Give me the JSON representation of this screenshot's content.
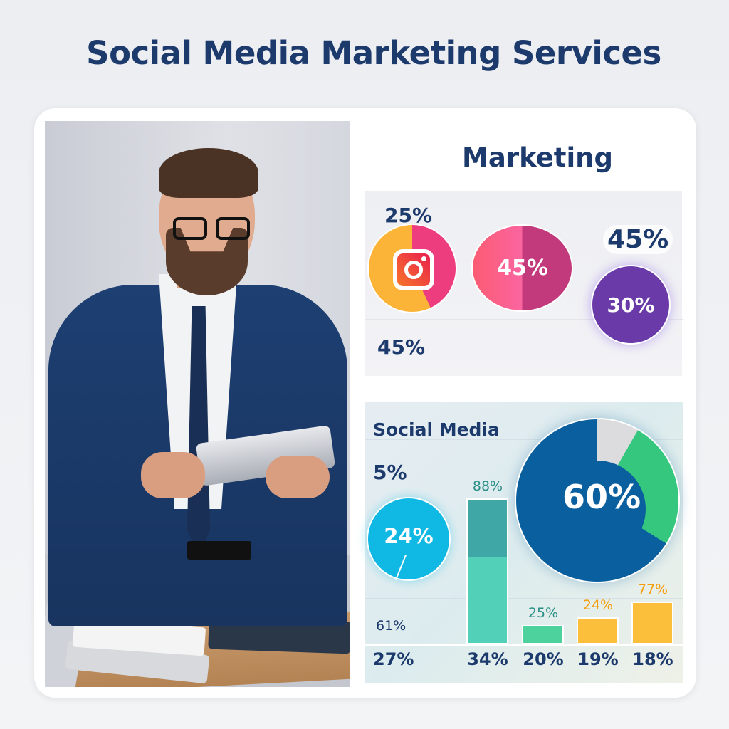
{
  "title": "Social Media Marketing Services",
  "marketing": {
    "title": "Marketing",
    "label_top_left": "25%",
    "label_bottom_left": "45%",
    "instagram_icon": "instagram-icon",
    "oval_value": "45%",
    "label_top_right": "45%",
    "purple_value": "30%",
    "colors": {
      "yellow": "#fbb437",
      "pink": "#ee3d7f",
      "oval_left": "#fb5c72",
      "oval_right": "#c23a7c",
      "purple": "#6a3aa8"
    }
  },
  "social_media": {
    "title": "Social Media",
    "label_5": "5%",
    "circle_value": "24%",
    "label_61": "61%",
    "pie_value": "60%",
    "bars": [
      {
        "top_label": "88%",
        "bottom_label": "34%",
        "value": 88,
        "color": "#52d0b8"
      },
      {
        "top_label": "25%",
        "bottom_label": "20%",
        "value": 25,
        "color": "#4ed29d"
      },
      {
        "top_label": "24%",
        "bottom_label": "19%",
        "value": 24,
        "color": "#fbbf3c"
      },
      {
        "top_label": "77%",
        "bottom_label": "18%",
        "value": 77,
        "color": "#fbbf3c"
      }
    ],
    "bottom_first": "27%",
    "colors": {
      "cyan": "#10b8e4",
      "blue": "#0a609f",
      "green": "#36c77f",
      "gray": "#dcdcde"
    }
  }
}
